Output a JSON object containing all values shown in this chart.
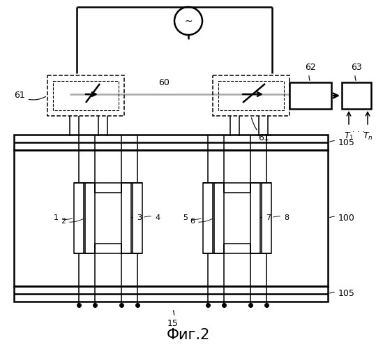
{
  "fig_label": "Фиг.2",
  "bg_color": "#ffffff",
  "lc": "#000000",
  "gc": "#aaaaaa",
  "figsize": [
    5.39,
    5.0
  ],
  "dpi": 100
}
